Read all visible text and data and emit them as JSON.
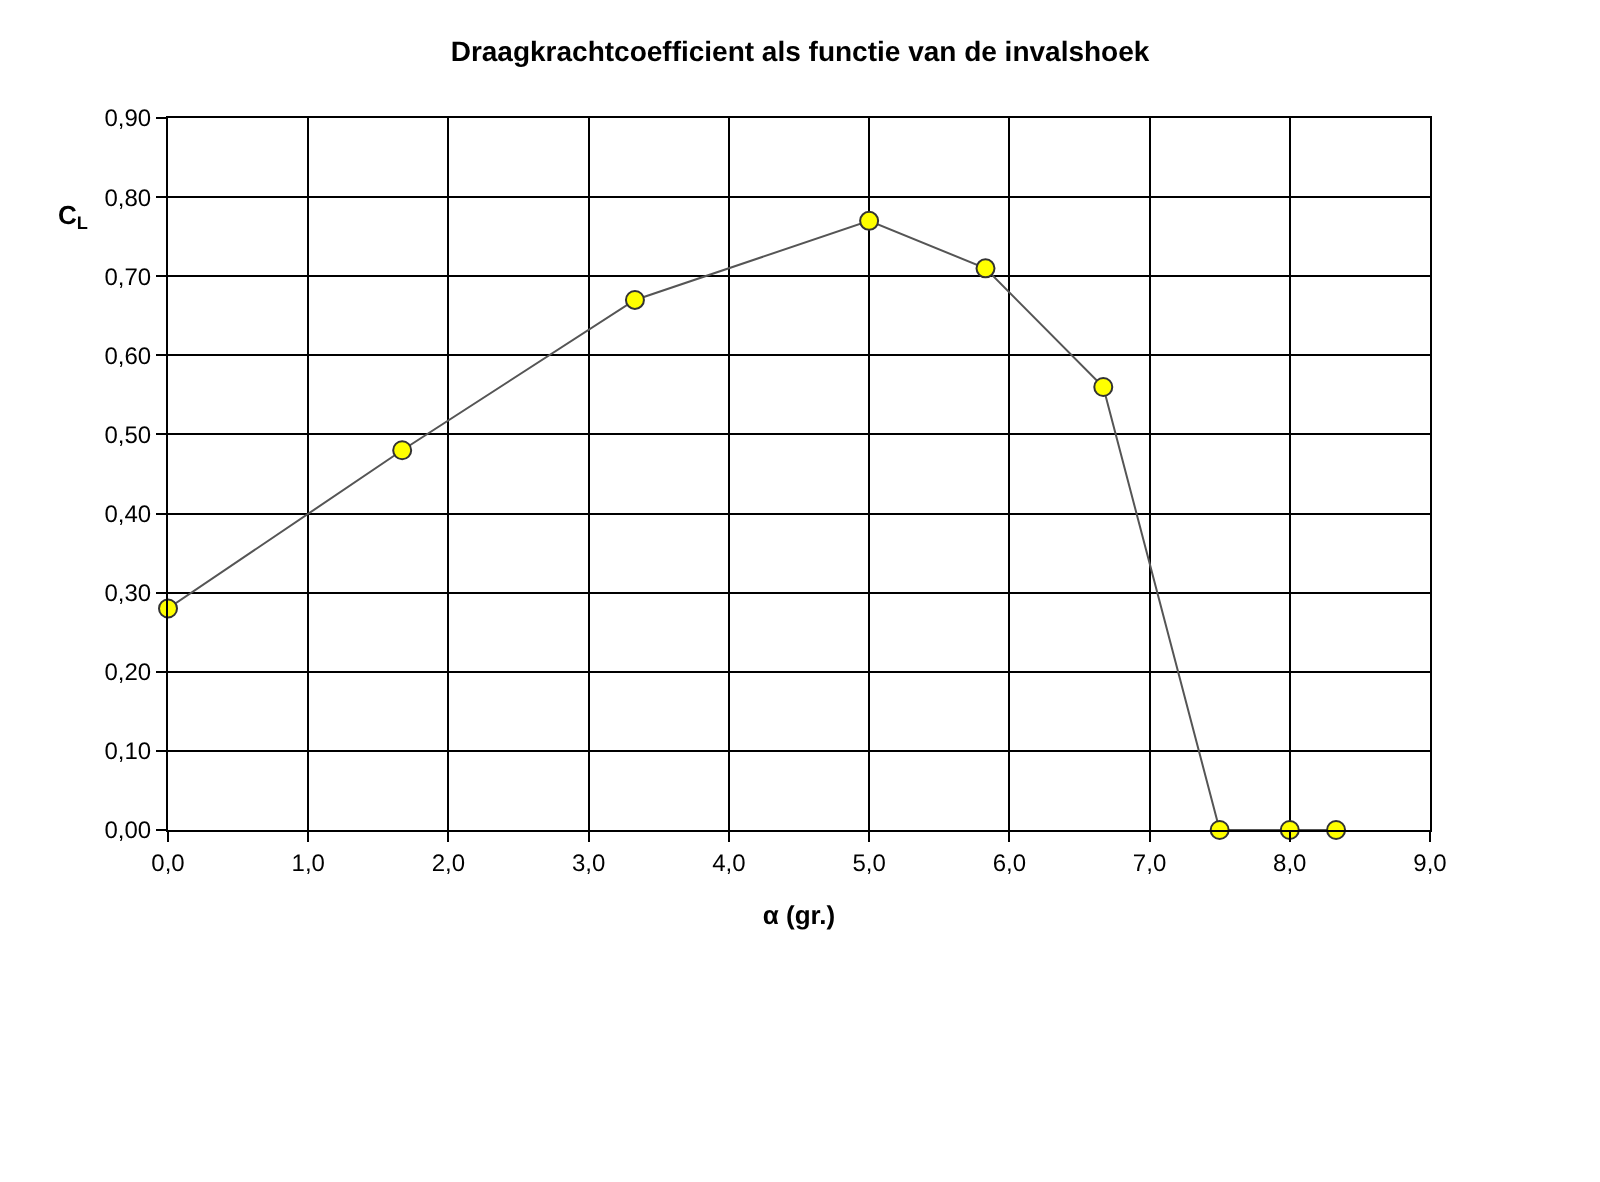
{
  "chart_data": {
    "type": "line",
    "title": "Draagkrachtcoefficient als functie van de invalshoek",
    "xlabel": "α (gr.)",
    "ylabel": "C$_{L}$",
    "x": [
      0,
      1.67,
      3.33,
      5.0,
      5.83,
      6.67,
      7.5,
      8.0,
      8.33
    ],
    "series": [
      {
        "color": "#ffff00",
        "values": [
          0.28,
          0.48,
          0.67,
          0.77,
          0.71,
          0.56,
          0,
          0,
          0
        ]
      }
    ],
    "xlim": [
      0,
      9
    ],
    "ylim": [
      0,
      0.9
    ],
    "xticks": [
      {
        "value": 0,
        "label": "0,0"
      },
      {
        "value": 1,
        "label": "1,0"
      },
      {
        "value": 2,
        "label": "2,0"
      },
      {
        "value": 3,
        "label": "3,0"
      },
      {
        "value": 4,
        "label": "4,0"
      },
      {
        "value": 5,
        "label": "5,0"
      },
      {
        "value": 6,
        "label": "6,0"
      },
      {
        "value": 7,
        "label": "7,0"
      },
      {
        "value": 8,
        "label": "8,0"
      },
      {
        "value": 9,
        "label": "9,0"
      }
    ],
    "yticks": [
      {
        "value": 0,
        "label": "0,00"
      },
      {
        "value": 0.1,
        "label": "0,10"
      },
      {
        "value": 0.2,
        "label": "0,20"
      },
      {
        "value": 0.3,
        "label": "0,30"
      },
      {
        "value": 0.4,
        "label": "0,40"
      },
      {
        "value": 0.5,
        "label": "0,50"
      },
      {
        "value": 0.6,
        "label": "0,60"
      },
      {
        "value": 0.7,
        "label": "0,70"
      },
      {
        "value": 0.8,
        "label": "0,80"
      },
      {
        "value": 0.9,
        "label": "0,90"
      }
    ],
    "grid": true,
    "marker": "circle",
    "line_style": "solid"
  }
}
